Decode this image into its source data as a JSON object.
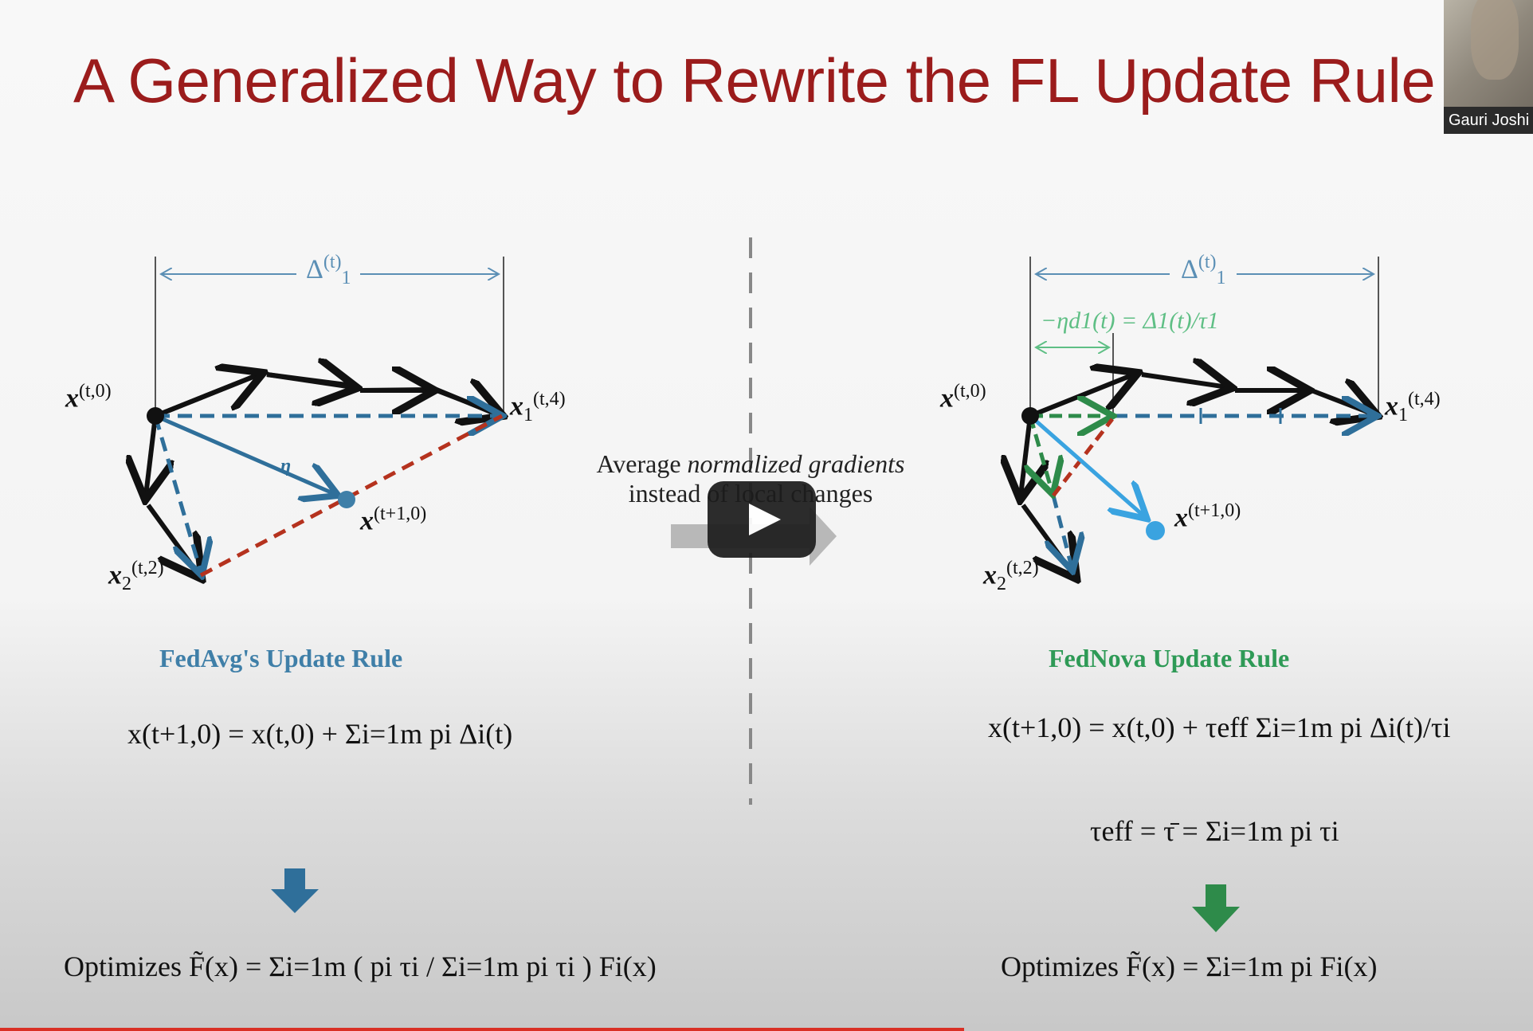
{
  "slide": {
    "title": "A Generalized Way to Rewrite the FL Update Rule",
    "webcam_name": "Gauri Joshi"
  },
  "left": {
    "delta_label": "Δ",
    "x_t0": "x",
    "x_t0_sup": "(t,0)",
    "x1_label": "x",
    "x1_sub": "1",
    "x1_sup": "(t,4)",
    "x2_label": "x",
    "x2_sub": "2",
    "x2_sup": "(t,2)",
    "xnext_label": "x",
    "xnext_sup": "(t+1,0)",
    "eta_label": "η",
    "heading": "FedAvg's Update Rule",
    "equation": "x(t+1,0) = x(t,0) + Σi=1m pi Δi(t)",
    "optimizes": "Optimizes  F̃(x) = Σi=1m ( pi τi / Σi=1m pi τi ) Fi(x)"
  },
  "center": {
    "line1_plain": "Average ",
    "line1_italic": "normalized gradients",
    "line2": "instead of local changes"
  },
  "right": {
    "delta_label": "Δ",
    "norm_label": "−ηd1(t) = Δ1(t)/τ1",
    "x_t0": "x",
    "x_t0_sup": "(t,0)",
    "x1_label": "x",
    "x1_sub": "1",
    "x1_sup": "(t,4)",
    "x2_label": "x",
    "x2_sub": "2",
    "x2_sup": "(t,2)",
    "xnext_label": "x",
    "xnext_sup": "(t+1,0)",
    "heading": "FedNova Update Rule",
    "equation": "x(t+1,0) = x(t,0) + τeff Σi=1m pi Δi(t)/τi",
    "tau_eff": "τeff = τ̄ = Σi=1m pi τi",
    "optimizes": "Optimizes  F̃(x) = Σi=1m pi Fi(x)"
  },
  "colors": {
    "title": "#9b1c1c",
    "fedavg_blue": "#3f7fa8",
    "fednova_green": "#2e9a56",
    "red_dash": "#b5321e",
    "light_blue": "#3aa3e0",
    "dark_blue_arrow": "#2f6f9a",
    "green_arrow": "#2e8b4a"
  },
  "video": {
    "play_icon": "play-icon"
  }
}
